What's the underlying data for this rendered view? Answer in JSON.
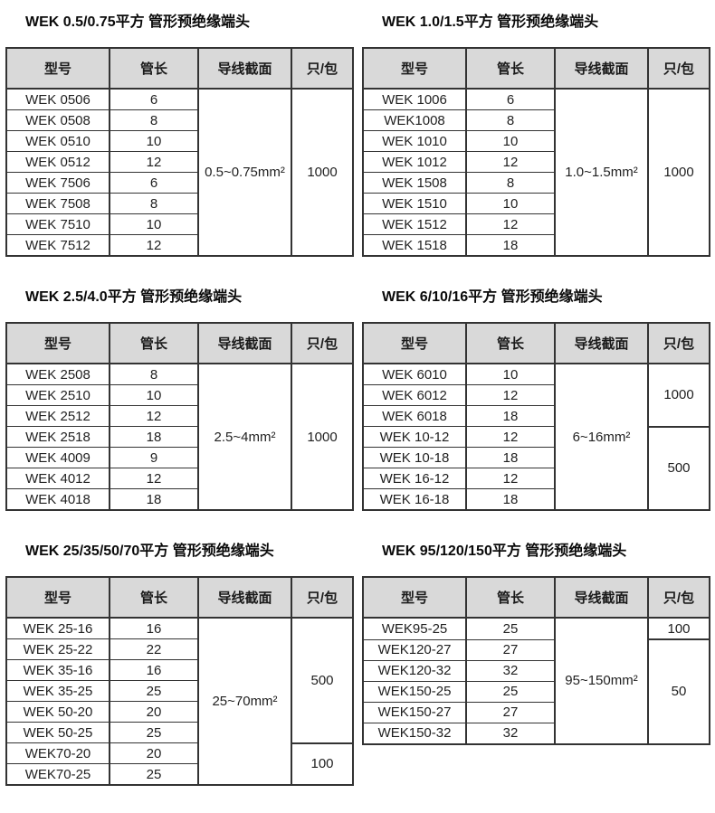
{
  "page": {
    "background": "#ffffff"
  },
  "colors": {
    "header_bg": "#d9d9d9",
    "border": "#333333",
    "text": "#1f1f1f"
  },
  "column_headers": [
    "型号",
    "管长",
    "导线截面",
    "只/包"
  ],
  "tables": [
    {
      "title": "WEK 0.5/0.75平方 管形预绝缘端头",
      "rows": [
        {
          "model": "WEK 0506",
          "length": "6"
        },
        {
          "model": "WEK 0508",
          "length": "8"
        },
        {
          "model": "WEK 0510",
          "length": "10"
        },
        {
          "model": "WEK 0512",
          "length": "12"
        },
        {
          "model": "WEK 7506",
          "length": "6"
        },
        {
          "model": "WEK 7508",
          "length": "8"
        },
        {
          "model": "WEK 7510",
          "length": "10"
        },
        {
          "model": "WEK 7512",
          "length": "12"
        }
      ],
      "cross_section": "0.5~0.75mm²",
      "pack_groups": [
        {
          "qty": "1000",
          "span": 8
        }
      ]
    },
    {
      "title": "WEK 1.0/1.5平方 管形预绝缘端头",
      "rows": [
        {
          "model": "WEK 1006",
          "length": "6"
        },
        {
          "model": "WEK1008",
          "length": "8"
        },
        {
          "model": "WEK 1010",
          "length": "10"
        },
        {
          "model": "WEK 1012",
          "length": "12"
        },
        {
          "model": "WEK 1508",
          "length": "8"
        },
        {
          "model": "WEK 1510",
          "length": "10"
        },
        {
          "model": "WEK 1512",
          "length": "12"
        },
        {
          "model": "WEK 1518",
          "length": "18"
        }
      ],
      "cross_section": "1.0~1.5mm²",
      "pack_groups": [
        {
          "qty": "1000",
          "span": 8
        }
      ]
    },
    {
      "title": "WEK 2.5/4.0平方 管形预绝缘端头",
      "rows": [
        {
          "model": "WEK 2508",
          "length": "8"
        },
        {
          "model": "WEK 2510",
          "length": "10"
        },
        {
          "model": "WEK 2512",
          "length": "12"
        },
        {
          "model": "WEK 2518",
          "length": "18"
        },
        {
          "model": "WEK 4009",
          "length": "9"
        },
        {
          "model": "WEK 4012",
          "length": "12"
        },
        {
          "model": "WEK 4018",
          "length": "18"
        }
      ],
      "cross_section": "2.5~4mm²",
      "pack_groups": [
        {
          "qty": "1000",
          "span": 7
        }
      ]
    },
    {
      "title": "WEK 6/10/16平方 管形预绝缘端头",
      "rows": [
        {
          "model": "WEK 6010",
          "length": "10"
        },
        {
          "model": "WEK 6012",
          "length": "12"
        },
        {
          "model": "WEK 6018",
          "length": "18"
        },
        {
          "model": "WEK 10-12",
          "length": "12"
        },
        {
          "model": "WEK 10-18",
          "length": "18"
        },
        {
          "model": "WEK 16-12",
          "length": "12"
        },
        {
          "model": "WEK 16-18",
          "length": "18"
        }
      ],
      "cross_section": "6~16mm²",
      "pack_groups": [
        {
          "qty": "1000",
          "span": 3
        },
        {
          "qty": "500",
          "span": 4
        }
      ]
    },
    {
      "title": "WEK 25/35/50/70平方 管形预绝缘端头",
      "rows": [
        {
          "model": "WEK 25-16",
          "length": "16"
        },
        {
          "model": "WEK 25-22",
          "length": "22"
        },
        {
          "model": "WEK 35-16",
          "length": "16"
        },
        {
          "model": "WEK 35-25",
          "length": "25"
        },
        {
          "model": "WEK 50-20",
          "length": "20"
        },
        {
          "model": "WEK 50-25",
          "length": "25"
        },
        {
          "model": "WEK70-20",
          "length": "20"
        },
        {
          "model": "WEK70-25",
          "length": "25"
        }
      ],
      "cross_section": "25~70mm²",
      "pack_groups": [
        {
          "qty": "500",
          "span": 6
        },
        {
          "qty": "100",
          "span": 2
        }
      ]
    },
    {
      "title": "WEK 95/120/150平方 管形预绝缘端头",
      "rows": [
        {
          "model": "WEK95-25",
          "length": "25"
        },
        {
          "model": "WEK120-27",
          "length": "27"
        },
        {
          "model": "WEK120-32",
          "length": "32"
        },
        {
          "model": "WEK150-25",
          "length": "25"
        },
        {
          "model": "WEK150-27",
          "length": "27"
        },
        {
          "model": "WEK150-32",
          "length": "32"
        }
      ],
      "cross_section": "95~150mm²",
      "pack_groups": [
        {
          "qty": "100",
          "span": 1
        },
        {
          "qty": "50",
          "span": 5
        }
      ]
    }
  ]
}
